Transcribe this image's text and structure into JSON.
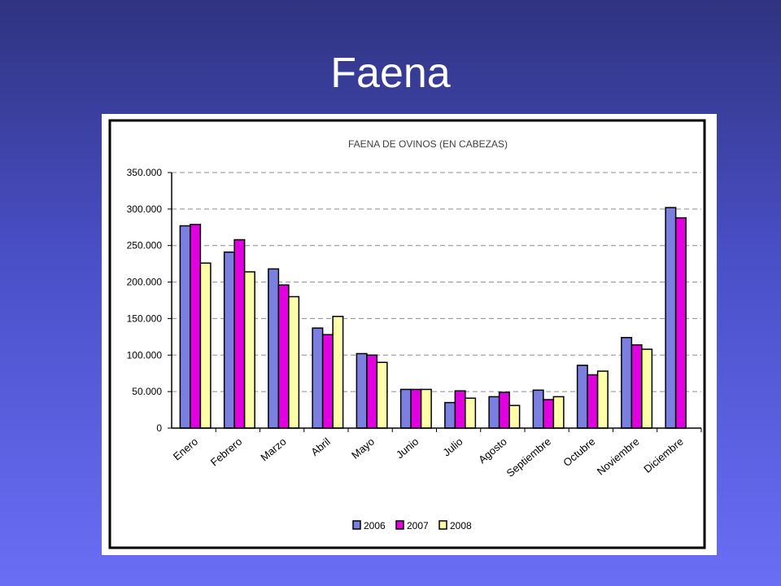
{
  "slide": {
    "title": "Faena"
  },
  "chart_data": {
    "type": "bar",
    "title": "FAENA DE OVINOS (EN CABEZAS)",
    "xlabel": "",
    "ylabel": "",
    "ylim": [
      0,
      350000
    ],
    "yticks": [
      "0",
      "50.000",
      "100.000",
      "150.000",
      "200.000",
      "250.000",
      "300.000",
      "350.000"
    ],
    "ytick_values": [
      0,
      50000,
      100000,
      150000,
      200000,
      250000,
      300000,
      350000
    ],
    "grid": true,
    "legend_position": "bottom",
    "categories": [
      "Enero",
      "Febrero",
      "Marzo",
      "Abril",
      "Mayo",
      "Junio",
      "Julio",
      "Agosto",
      "Septiembre",
      "Octubre",
      "Noviembre",
      "Diciembre"
    ],
    "series": [
      {
        "name": "2006",
        "color": "#7b7fe0",
        "values": [
          277000,
          241000,
          218000,
          137000,
          102000,
          53000,
          35000,
          43000,
          52000,
          86000,
          124000,
          302000
        ]
      },
      {
        "name": "2007",
        "color": "#e000e0",
        "values": [
          279000,
          258000,
          196000,
          128000,
          100000,
          53000,
          51000,
          49000,
          39000,
          73000,
          114000,
          288000
        ]
      },
      {
        "name": "2008",
        "color": "#ffffaa",
        "values": [
          226000,
          214000,
          180000,
          153000,
          90000,
          53000,
          41000,
          31000,
          43000,
          78000,
          108000,
          null
        ]
      }
    ]
  }
}
